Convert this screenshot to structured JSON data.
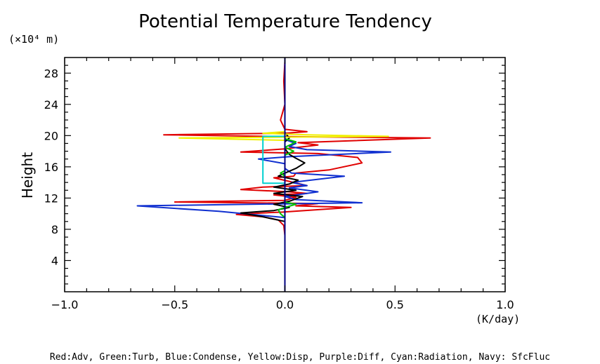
{
  "chart_data": {
    "type": "line",
    "title": "Potential Temperature Tendency",
    "xlabel": "(K/day)",
    "ylabel": "Height",
    "yunit": "(×10⁴ m)",
    "xlim": [
      -1.0,
      1.0
    ],
    "ylim": [
      0,
      30
    ],
    "xticks": [
      "−1.0",
      "−0.5",
      "0.0",
      "0.5",
      "1.0"
    ],
    "xtick_values": [
      -1.0,
      -0.5,
      0.0,
      0.5,
      1.0
    ],
    "yticks": [
      "4",
      "8",
      "12",
      "16",
      "20",
      "24",
      "28"
    ],
    "ytick_values": [
      4,
      8,
      12,
      16,
      20,
      24,
      28
    ],
    "grid": false,
    "legend_text": "Red:Adv, Green:Turb, Blue:Condense, Yellow:Disp, Purple:Diff, Cyan:Radiation, Navy: SfcFluc",
    "series": [
      {
        "color": "#e00000",
        "points": [
          [
            0,
            7.2
          ],
          [
            -0.005,
            8.5
          ],
          [
            -0.03,
            9.2
          ],
          [
            -0.1,
            9.6
          ],
          [
            -0.22,
            9.9
          ],
          [
            -0.1,
            10.1
          ],
          [
            -0.01,
            10.2
          ],
          [
            0.3,
            10.8
          ],
          [
            0.05,
            11.0
          ],
          [
            0.15,
            11.3
          ],
          [
            -0.5,
            11.5
          ],
          [
            0.0,
            11.7
          ],
          [
            0.05,
            12.1
          ],
          [
            -0.05,
            12.4
          ],
          [
            0.1,
            12.6
          ],
          [
            0.02,
            12.8
          ],
          [
            -0.2,
            13.1
          ],
          [
            -0.1,
            13.4
          ],
          [
            0.1,
            13.6
          ],
          [
            0.04,
            14.0
          ],
          [
            -0.05,
            14.6
          ],
          [
            0.04,
            14.8
          ],
          [
            0.05,
            15.2
          ],
          [
            0.2,
            15.6
          ],
          [
            0.35,
            16.5
          ],
          [
            0.33,
            17.2
          ],
          [
            0.15,
            17.7
          ],
          [
            -0.2,
            17.9
          ],
          [
            0.0,
            18.3
          ],
          [
            0.15,
            18.8
          ],
          [
            0.06,
            19.1
          ],
          [
            0.66,
            19.7
          ],
          [
            -0.1,
            19.9
          ],
          [
            -0.55,
            20.1
          ],
          [
            0.0,
            20.3
          ],
          [
            0.1,
            20.5
          ],
          [
            0.0,
            20.8
          ],
          [
            -0.02,
            22
          ],
          [
            0,
            24
          ],
          [
            -0.005,
            27
          ],
          [
            0,
            29.5
          ]
        ]
      },
      {
        "color": "#1030d0",
        "points": [
          [
            0,
            9.5
          ],
          [
            -0.3,
            10.3
          ],
          [
            -0.67,
            11.0
          ],
          [
            0.35,
            11.4
          ],
          [
            0.05,
            11.8
          ],
          [
            0.0,
            12.2
          ],
          [
            0.15,
            12.8
          ],
          [
            0.02,
            13.3
          ],
          [
            0.1,
            13.6
          ],
          [
            0.03,
            14.0
          ],
          [
            0.27,
            14.8
          ],
          [
            0.03,
            15.2
          ],
          [
            0.0,
            15.8
          ],
          [
            0.0,
            16.4
          ],
          [
            -0.12,
            17.0
          ],
          [
            0.02,
            17.3
          ],
          [
            0.48,
            17.9
          ],
          [
            0.1,
            18.2
          ],
          [
            0.02,
            18.6
          ],
          [
            0.05,
            19.0
          ],
          [
            0.0,
            19.5
          ],
          [
            0.0,
            30
          ]
        ]
      },
      {
        "color": "#000000",
        "points": [
          [
            0,
            9.0
          ],
          [
            -0.1,
            9.6
          ],
          [
            -0.2,
            10.1
          ],
          [
            -0.05,
            10.4
          ],
          [
            0.02,
            10.8
          ],
          [
            -0.05,
            11.2
          ],
          [
            0.02,
            11.6
          ],
          [
            0.08,
            12.2
          ],
          [
            -0.05,
            12.6
          ],
          [
            0.05,
            13.0
          ],
          [
            -0.05,
            13.4
          ],
          [
            0.02,
            13.8
          ],
          [
            0.06,
            14.3
          ],
          [
            -0.03,
            14.8
          ],
          [
            0.0,
            15.2
          ],
          [
            0.05,
            15.8
          ],
          [
            0.09,
            16.5
          ],
          [
            0.05,
            17.1
          ],
          [
            0.02,
            17.6
          ],
          [
            0.0,
            18.3
          ],
          [
            0.0,
            19.2
          ],
          [
            0.02,
            19.7
          ],
          [
            0.0,
            20.4
          ],
          [
            0.0,
            21.5
          ]
        ]
      },
      {
        "color": "#00c000",
        "points": [
          [
            0,
            9.5
          ],
          [
            -0.02,
            10.0
          ],
          [
            -0.03,
            10.5
          ],
          [
            0.0,
            10.8
          ],
          [
            0.05,
            11.2
          ],
          [
            0.0,
            11.5
          ],
          [
            0.0,
            14.8
          ],
          [
            -0.02,
            15.2
          ],
          [
            0.0,
            15.5
          ],
          [
            0.0,
            17.5
          ],
          [
            0.04,
            18.0
          ],
          [
            0.0,
            18.5
          ],
          [
            0.03,
            18.9
          ],
          [
            0.05,
            19.2
          ],
          [
            0.0,
            19.6
          ],
          [
            0.0,
            21
          ]
        ]
      },
      {
        "color": "#f0f000",
        "points": [
          [
            0,
            19.4
          ],
          [
            -0.48,
            19.7
          ],
          [
            0.47,
            19.9
          ],
          [
            0.1,
            20.1
          ],
          [
            -0.1,
            20.3
          ],
          [
            0.0,
            20.5
          ]
        ]
      },
      {
        "color": "#00d0d0",
        "points": [
          [
            0,
            13.9
          ],
          [
            -0.1,
            13.9
          ],
          [
            -0.1,
            19.9
          ],
          [
            0.0,
            19.9
          ]
        ]
      },
      {
        "color": "#000080",
        "points": [
          [
            0,
            0
          ],
          [
            0,
            30
          ]
        ]
      }
    ]
  }
}
